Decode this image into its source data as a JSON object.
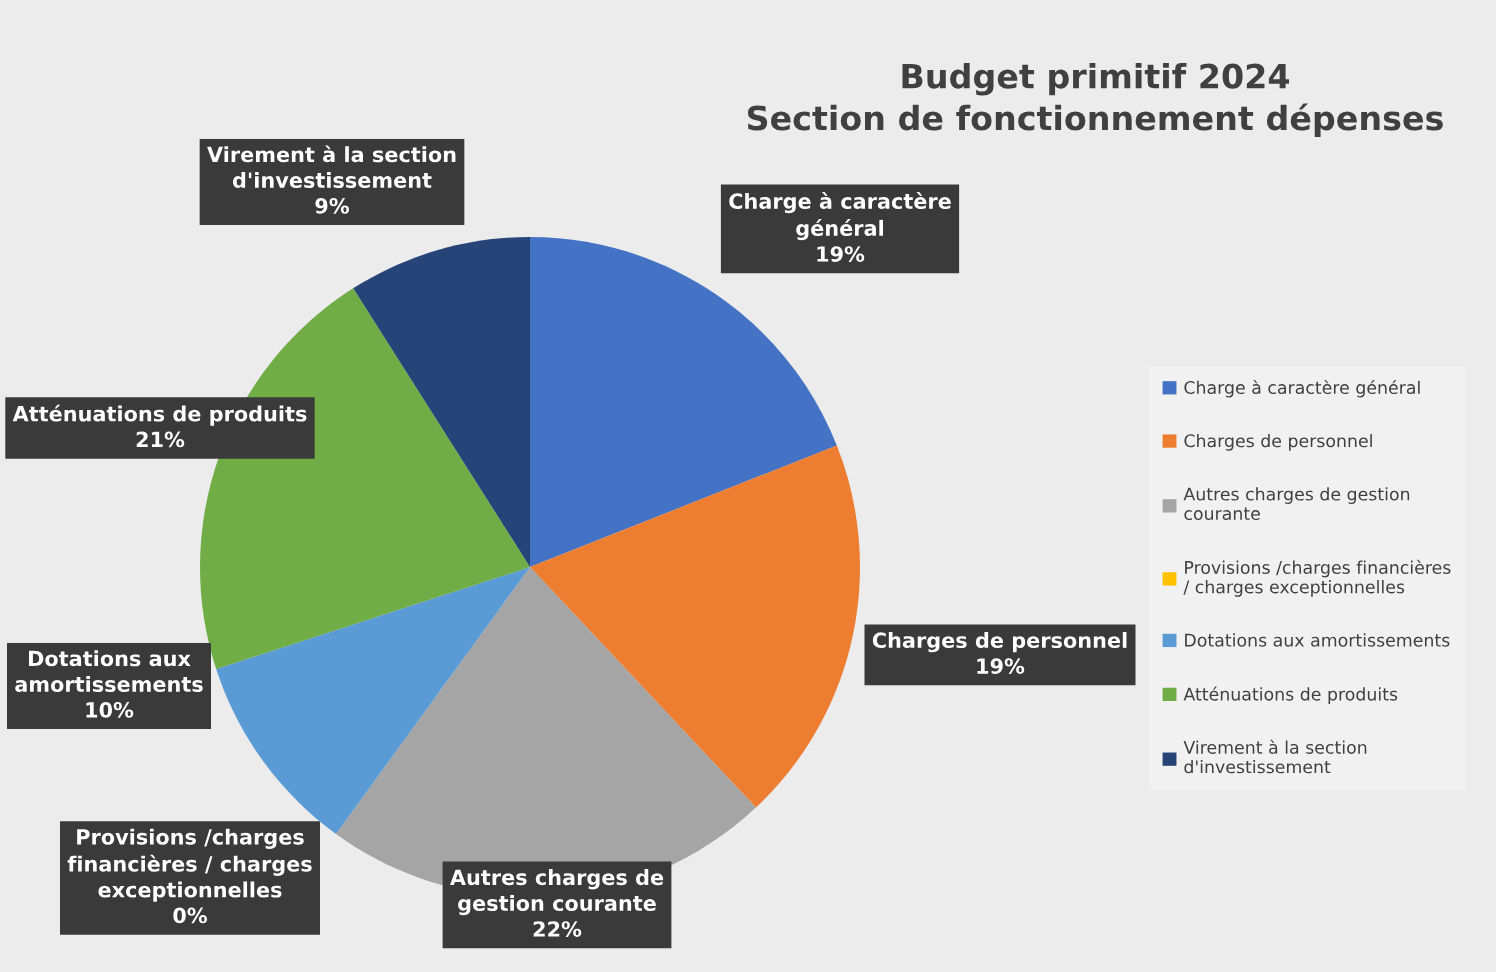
{
  "chart_data": {
    "type": "pie",
    "title": "Budget primitif 2024\nSection de fonctionnement dépenses",
    "categories": [
      "Charge à caractère général",
      "Charges de personnel",
      "Autres charges de gestion courante",
      "Provisions /charges financières / charges exceptionnelles",
      "Dotations aux amortissements",
      "Atténuations de produits",
      "Virement à la section d'investissement"
    ],
    "values": [
      19,
      19,
      22,
      0,
      10,
      21,
      9
    ],
    "colors": [
      "#4472c4",
      "#ed7d31",
      "#a5a5a5",
      "#ffc000",
      "#5b9bd5",
      "#70ad47",
      "#264478"
    ],
    "value_labels": [
      "19%",
      "19%",
      "22%",
      "0%",
      "10%",
      "21%",
      "9%"
    ],
    "legend": "right"
  }
}
